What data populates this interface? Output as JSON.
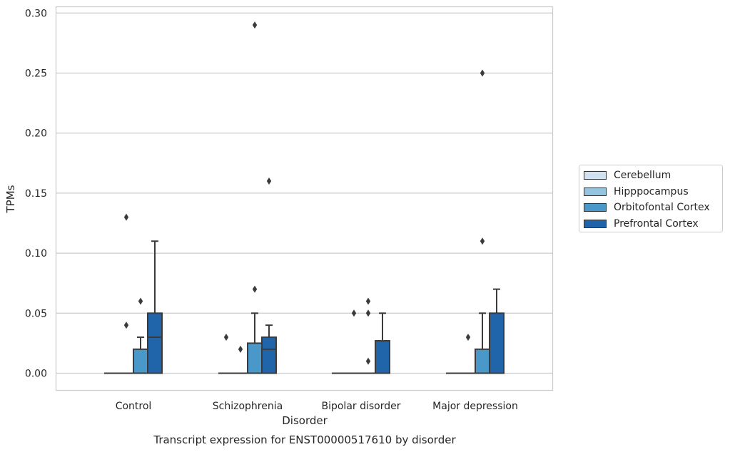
{
  "chart_data": {
    "type": "box",
    "xlabel": "Disorder",
    "ylabel": "TPMs",
    "caption": "Transcript expression for ENST00000517610 by disorder",
    "ylim": [
      -0.014,
      0.305
    ],
    "yticks": [
      "0.00",
      "0.05",
      "0.10",
      "0.15",
      "0.20",
      "0.25",
      "0.30"
    ],
    "grid": "horizontal",
    "legend_position": "right",
    "categories": [
      "Control",
      "Schizophrenia",
      "Bipolar disorder",
      "Major depression"
    ],
    "series": [
      {
        "name": "Cerebellum",
        "color": "#d0e1f2"
      },
      {
        "name": "Hipppocampus",
        "color": "#94c4df"
      },
      {
        "name": "Orbitofontal Cortex",
        "color": "#4a98c9"
      },
      {
        "name": "Prefrontal Cortex",
        "color": "#2064aa"
      }
    ],
    "boxes": [
      [
        {
          "q1": 0,
          "median": 0,
          "q3": 0,
          "whislo": 0,
          "whishi": 0,
          "fliers": []
        },
        {
          "q1": 0,
          "median": 0,
          "q3": 0,
          "whislo": 0,
          "whishi": 0,
          "fliers": [
            0.04,
            0.13
          ]
        },
        {
          "q1": 0,
          "median": 0,
          "q3": 0.02,
          "whislo": 0,
          "whishi": 0.03,
          "fliers": [
            0.06
          ]
        },
        {
          "q1": 0,
          "median": 0.03,
          "q3": 0.05,
          "whislo": 0,
          "whishi": 0.11,
          "fliers": []
        }
      ],
      [
        {
          "q1": 0,
          "median": 0,
          "q3": 0,
          "whislo": 0,
          "whishi": 0,
          "fliers": [
            0.03
          ]
        },
        {
          "q1": 0,
          "median": 0,
          "q3": 0,
          "whislo": 0,
          "whishi": 0,
          "fliers": [
            0.02
          ]
        },
        {
          "q1": 0,
          "median": 0,
          "q3": 0.025,
          "whislo": 0,
          "whishi": 0.05,
          "fliers": [
            0.07,
            0.29
          ]
        },
        {
          "q1": 0,
          "median": 0.02,
          "q3": 0.03,
          "whislo": 0,
          "whishi": 0.04,
          "fliers": [
            0.16
          ]
        }
      ],
      [
        {
          "q1": 0,
          "median": 0,
          "q3": 0,
          "whislo": 0,
          "whishi": 0,
          "fliers": []
        },
        {
          "q1": 0,
          "median": 0,
          "q3": 0,
          "whislo": 0,
          "whishi": 0,
          "fliers": [
            0.05
          ]
        },
        {
          "q1": 0,
          "median": 0,
          "q3": 0,
          "whislo": 0,
          "whishi": 0,
          "fliers": [
            0.01,
            0.05,
            0.06
          ]
        },
        {
          "q1": 0,
          "median": 0,
          "q3": 0.027,
          "whislo": 0,
          "whishi": 0.05,
          "fliers": []
        }
      ],
      [
        {
          "q1": 0,
          "median": 0,
          "q3": 0,
          "whislo": 0,
          "whishi": 0,
          "fliers": []
        },
        {
          "q1": 0,
          "median": 0,
          "q3": 0,
          "whislo": 0,
          "whishi": 0,
          "fliers": [
            0.03
          ]
        },
        {
          "q1": 0,
          "median": 0,
          "q3": 0.02,
          "whislo": 0,
          "whishi": 0.05,
          "fliers": [
            0.11,
            0.25
          ]
        },
        {
          "q1": 0,
          "median": 0,
          "q3": 0.05,
          "whislo": 0,
          "whishi": 0.07,
          "fliers": []
        }
      ]
    ]
  }
}
